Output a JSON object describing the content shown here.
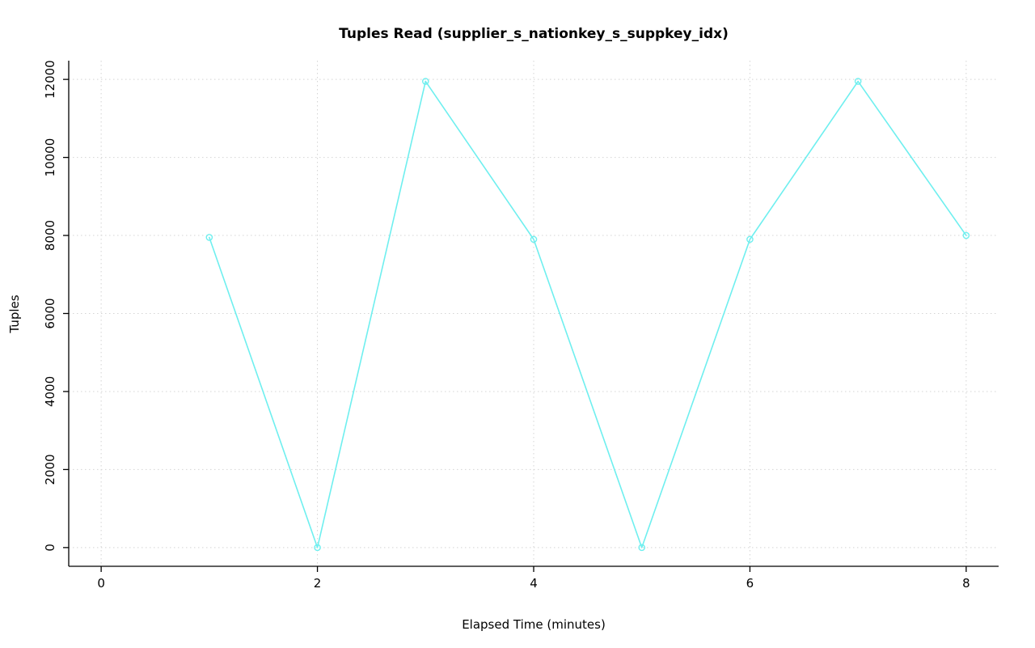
{
  "chart_data": {
    "type": "line",
    "title": "Tuples Read (supplier_s_nationkey_s_suppkey_idx)",
    "xlabel": "Elapsed Time (minutes)",
    "ylabel": "Tuples",
    "x": [
      1,
      2,
      3,
      4,
      5,
      6,
      7,
      8
    ],
    "values": [
      7950,
      0,
      11950,
      7900,
      0,
      7900,
      11950,
      8000
    ],
    "xticks": [
      0,
      2,
      4,
      6,
      8
    ],
    "yticks": [
      0,
      2000,
      4000,
      6000,
      8000,
      10000,
      12000
    ],
    "xlim": [
      -0.3,
      8.3
    ],
    "ylim": [
      -480,
      12480
    ],
    "grid": true,
    "legend": "none",
    "marker": "open-circle",
    "colors": {
      "series": "#6FEFEF",
      "grid": "#d4d4d4",
      "axis": "#000000",
      "background": "#ffffff"
    }
  }
}
